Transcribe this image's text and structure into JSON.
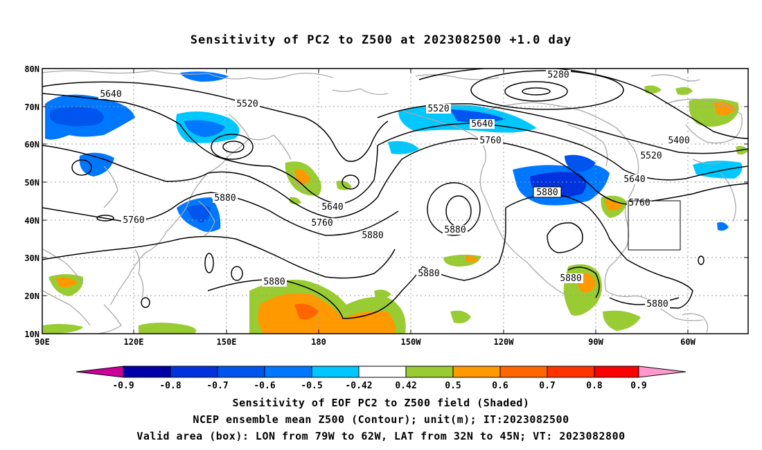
{
  "title": "Sensitivity of PC2 to Z500 at 2023082500 +1.0 day",
  "map": {
    "lat_labels": [
      "80N",
      "70N",
      "60N",
      "50N",
      "40N",
      "30N",
      "20N",
      "10N"
    ],
    "lon_labels": [
      "90E",
      "120E",
      "150E",
      "180",
      "150W",
      "120W",
      "90W",
      "60W"
    ],
    "valid_box": {
      "lon_west": "79W",
      "lon_east": "62W",
      "lat_south": "32N",
      "lat_north": "45N"
    },
    "contour_labels": [
      "5280",
      "5520",
      "5640",
      "5520",
      "5640",
      "5760",
      "5400",
      "5520",
      "5640",
      "5760",
      "5880",
      "5640",
      "5760",
      "5880",
      "5760",
      "5880",
      "5880",
      "5880",
      "5880",
      "5880",
      "5880"
    ],
    "colors": {
      "contour": "#000000",
      "coastline": "#a8a8a8",
      "grid": "#9a9a9a"
    }
  },
  "colorbar": {
    "labels": [
      "-0.9",
      "-0.8",
      "-0.7",
      "-0.6",
      "-0.5",
      "-0.42",
      "0.42",
      "0.5",
      "0.6",
      "0.7",
      "0.8",
      "0.9"
    ],
    "colors": [
      "#cc0099",
      "#0000a8",
      "#0033dd",
      "#0055ee",
      "#0077ff",
      "#00c8ff",
      "#ffffff",
      "#99cc33",
      "#ff9900",
      "#ff6600",
      "#ff3300",
      "#ff0000",
      "#ff99cc"
    ]
  },
  "caption": {
    "line1": "Sensitivity of EOF PC2 to Z500 field (Shaded)",
    "line2": "NCEP ensemble mean Z500 (Contour); unit(m); IT:2023082500",
    "line3": "Valid area (box): LON from 79W to 62W, LAT from 32N to 45N; VT: 2023082800"
  }
}
